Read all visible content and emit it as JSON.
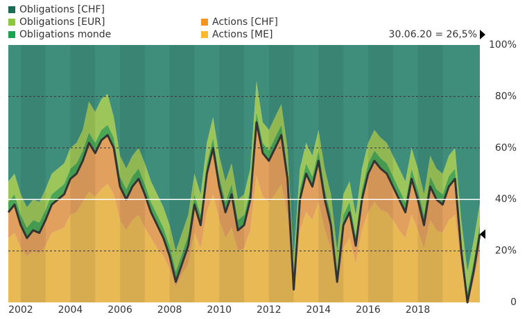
{
  "chart_data": {
    "type": "stacked_area",
    "annotation": "30.06.20 = 26,5%",
    "x": [
      2001.5,
      2001.75,
      2002,
      2002.25,
      2002.5,
      2002.75,
      2003,
      2003.25,
      2003.5,
      2003.75,
      2004,
      2004.25,
      2004.5,
      2004.75,
      2005,
      2005.25,
      2005.5,
      2005.75,
      2006,
      2006.25,
      2006.5,
      2006.75,
      2007,
      2007.25,
      2007.5,
      2007.75,
      2008,
      2008.25,
      2008.5,
      2008.75,
      2009,
      2009.25,
      2009.5,
      2009.75,
      2010,
      2010.25,
      2010.5,
      2010.75,
      2011,
      2011.25,
      2011.5,
      2011.75,
      2012,
      2012.25,
      2012.5,
      2012.75,
      2013,
      2013.25,
      2013.5,
      2013.75,
      2014,
      2014.25,
      2014.5,
      2014.75,
      2015,
      2015.25,
      2015.5,
      2015.75,
      2016,
      2016.25,
      2016.5,
      2016.75,
      2017,
      2017.25,
      2017.5,
      2017.75,
      2018,
      2018.25,
      2018.5,
      2018.75,
      2019,
      2019.25,
      2019.5,
      2019.75,
      2020,
      2020.25,
      2020.5
    ],
    "series": [
      {
        "name": "Obligations [CHF]",
        "color": "#3f8e7c",
        "legend_color": "#1b6b55",
        "values": [
          53,
          50,
          58,
          63,
          60,
          61,
          56,
          50,
          48,
          46,
          40,
          38,
          33,
          22,
          26,
          21,
          19,
          28,
          43,
          48,
          43,
          40,
          46,
          53,
          58,
          63,
          70,
          80,
          73,
          66,
          50,
          58,
          38,
          28,
          43,
          53,
          46,
          60,
          58,
          48,
          14,
          30,
          33,
          28,
          23,
          40,
          83,
          48,
          38,
          43,
          33,
          48,
          58,
          80,
          58,
          53,
          66,
          48,
          38,
          33,
          36,
          38,
          43,
          48,
          53,
          40,
          48,
          58,
          43,
          48,
          50,
          43,
          40,
          68,
          88,
          76,
          61.5
        ]
      },
      {
        "name": "Obligations [EUR]",
        "color": "#9cc55a",
        "legend_color": "#8dc63f",
        "values": [
          8,
          8,
          8,
          8,
          8,
          8,
          8,
          8,
          8,
          8,
          8,
          8,
          8,
          12,
          12,
          12,
          12,
          8,
          8,
          8,
          8,
          8,
          8,
          8,
          8,
          8,
          8,
          8,
          8,
          8,
          8,
          8,
          8,
          8,
          8,
          8,
          8,
          8,
          8,
          8,
          12,
          8,
          8,
          8,
          8,
          8,
          8,
          8,
          8,
          8,
          8,
          8,
          8,
          8,
          8,
          8,
          8,
          8,
          8,
          8,
          8,
          8,
          8,
          8,
          8,
          8,
          8,
          8,
          8,
          8,
          8,
          8,
          8,
          8,
          8,
          8,
          8
        ]
      },
      {
        "name": "Obligations monde",
        "color": "#4aa655",
        "legend_color": "#1aa450",
        "values": [
          4,
          4,
          4,
          4,
          4,
          4,
          4,
          4,
          4,
          4,
          4,
          4,
          4,
          4,
          4,
          4,
          4,
          4,
          4,
          4,
          4,
          4,
          4,
          4,
          4,
          4,
          4,
          4,
          4,
          4,
          4,
          4,
          4,
          4,
          4,
          4,
          4,
          4,
          4,
          4,
          4,
          4,
          4,
          4,
          4,
          4,
          4,
          4,
          4,
          4,
          4,
          4,
          4,
          4,
          4,
          4,
          4,
          4,
          4,
          4,
          4,
          4,
          4,
          4,
          4,
          4,
          4,
          4,
          4,
          4,
          4,
          4,
          4,
          4,
          4,
          4,
          4
        ]
      },
      {
        "name": "Actions [CHF]",
        "color": "#e2a05e",
        "legend_color": "#f7941d",
        "values": [
          10,
          11,
          9,
          7,
          8,
          8,
          10,
          11,
          12,
          13,
          14,
          15,
          16,
          19,
          17,
          19,
          19,
          18,
          13,
          12,
          13,
          14,
          13,
          10,
          9,
          7,
          5,
          2,
          4,
          7,
          11,
          9,
          15,
          18,
          13,
          10,
          13,
          8,
          9,
          12,
          21,
          17,
          16,
          18,
          19,
          14,
          1,
          12,
          15,
          13,
          16,
          12,
          9,
          2,
          9,
          10,
          7,
          12,
          15,
          16,
          16,
          15,
          13,
          12,
          10,
          14,
          12,
          9,
          13,
          12,
          11,
          13,
          14,
          6,
          0,
          4,
          7.5
        ]
      },
      {
        "name": "Actions [ME]",
        "color": "#e8b955",
        "legend_color": "#fbb92d",
        "values": [
          25,
          27,
          21,
          18,
          20,
          19,
          22,
          27,
          28,
          29,
          34,
          35,
          39,
          43,
          41,
          44,
          46,
          42,
          32,
          28,
          32,
          34,
          29,
          25,
          21,
          18,
          13,
          6,
          11,
          15,
          27,
          21,
          35,
          42,
          32,
          25,
          29,
          20,
          21,
          28,
          49,
          41,
          39,
          42,
          46,
          34,
          4,
          28,
          35,
          32,
          39,
          28,
          21,
          6,
          21,
          25,
          15,
          28,
          35,
          39,
          36,
          35,
          32,
          28,
          25,
          34,
          28,
          21,
          32,
          28,
          27,
          32,
          34,
          14,
          0,
          8,
          19
        ]
      }
    ],
    "xlim": [
      2001.5,
      2020.5
    ],
    "xticks": [
      2002,
      2004,
      2006,
      2008,
      2010,
      2012,
      2014,
      2016,
      2018
    ],
    "ylim": [
      0,
      100
    ],
    "yticks": [
      0,
      {
        "value": 20,
        "label": "20%"
      },
      {
        "value": 40,
        "label": "40%"
      },
      {
        "value": 60,
        "label": "60%"
      },
      {
        "value": 80,
        "label": "80%"
      },
      {
        "value": 100,
        "label": "100%"
      }
    ],
    "reference_line": 40,
    "grid": true
  }
}
